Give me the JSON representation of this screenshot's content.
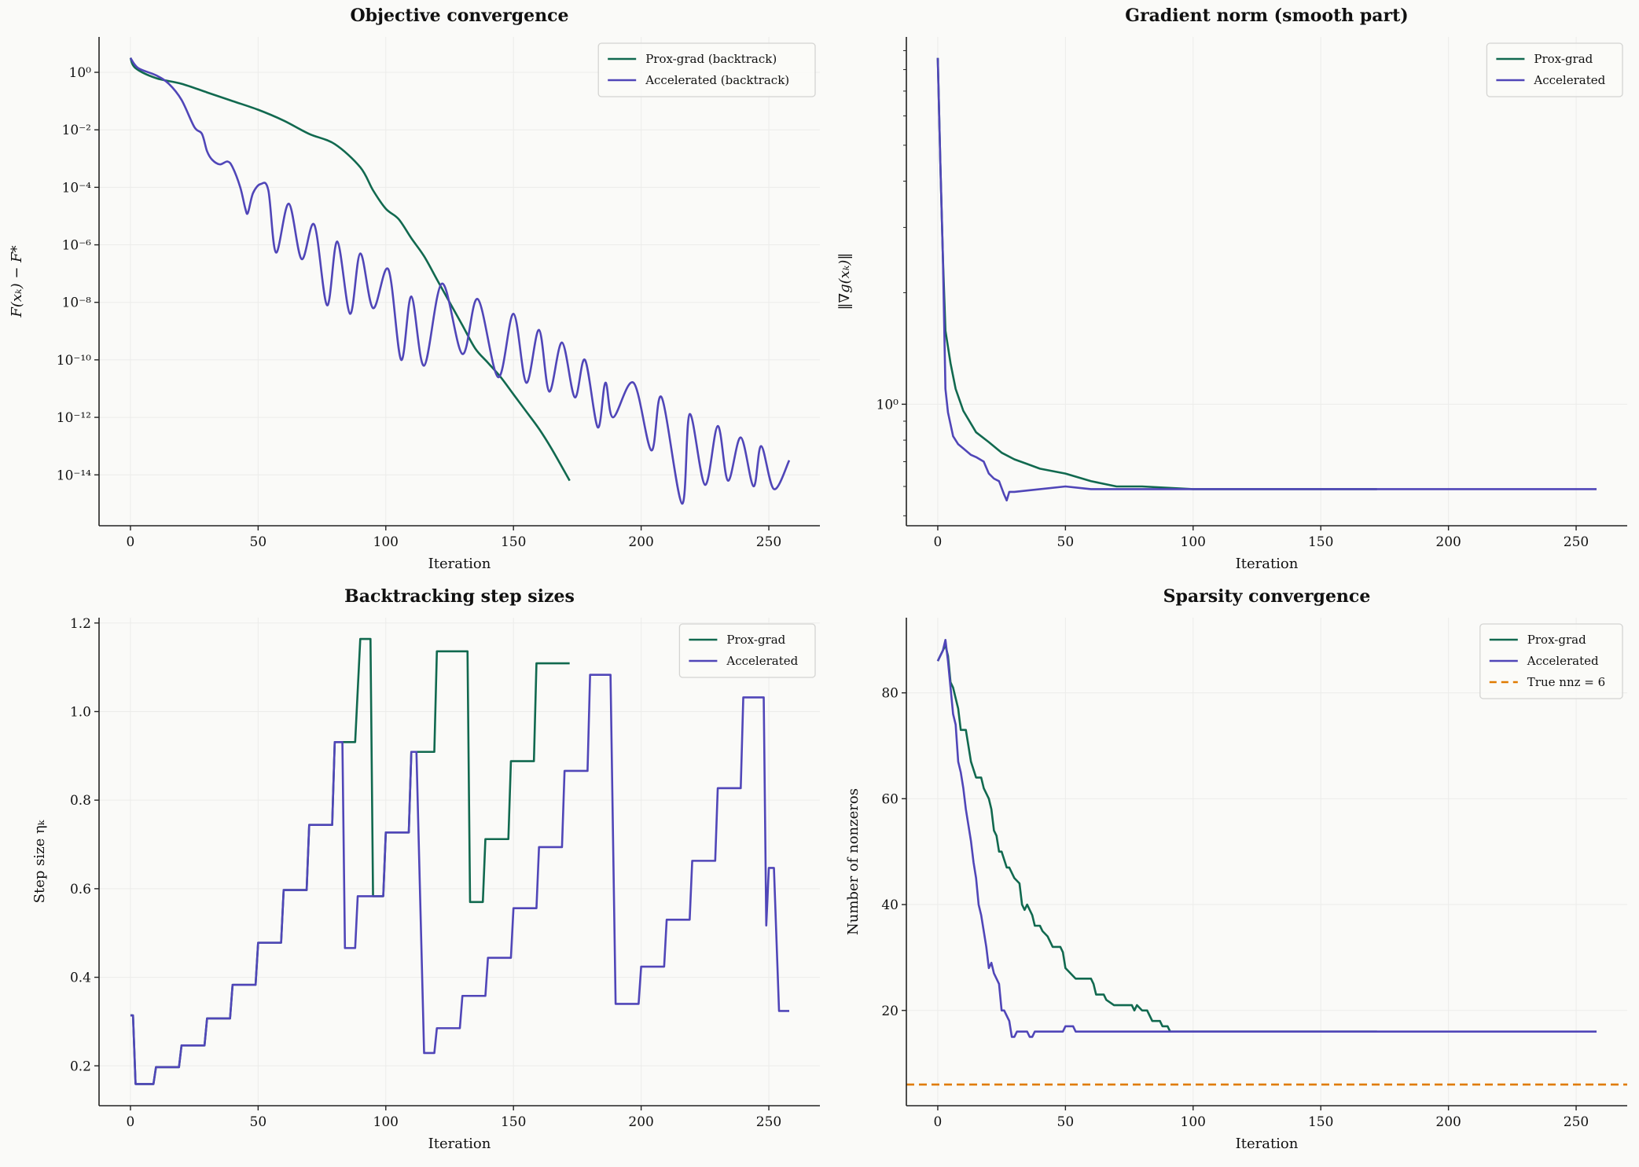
{
  "chart_data": [
    {
      "type": "line",
      "title": "Objective convergence",
      "xlabel": "Iteration",
      "ylabel": "F(xₖ) − F*",
      "yscale": "log",
      "xlim": [
        -12.3,
        270
      ],
      "ylim": [
        1.7e-16,
        17
      ],
      "grid": true,
      "legend": "top-right",
      "xticks": [
        0,
        50,
        100,
        150,
        200,
        250
      ],
      "xtick_labels": [
        "0",
        "50",
        "100",
        "150",
        "200",
        "250"
      ],
      "yticks": [
        1,
        0.01,
        0.0001,
        1e-06,
        1e-08,
        1e-10,
        1e-12,
        1e-14
      ],
      "ytick_labels": [
        "10⁰",
        "10⁻²",
        "10⁻⁴",
        "10⁻⁶",
        "10⁻⁸",
        "10⁻¹⁰",
        "10⁻¹²",
        "10⁻¹⁴"
      ],
      "series": [
        {
          "name": "Prox-grad (backtrack)",
          "color": "#11694f",
          "x": [
            0,
            2,
            10,
            20,
            30,
            40,
            50,
            60,
            70,
            80,
            90,
            95,
            100,
            105,
            110,
            115,
            120,
            125,
            130,
            135,
            140,
            145,
            150,
            155,
            160,
            165,
            172
          ],
          "y": [
            3.2,
            1.4,
            0.63,
            0.4,
            0.2,
            0.1,
            0.05,
            0.021,
            0.0072,
            0.0032,
            0.0005,
            7.9e-05,
            1.8e-05,
            7.9e-06,
            1.7e-06,
            4e-07,
            6.3e-08,
            1e-08,
            1.6e-09,
            2.5e-10,
            7.9e-11,
            2.5e-11,
            6.3e-12,
            1.6e-12,
            4e-13,
            7.9e-14,
            6.3e-15
          ]
        },
        {
          "name": "Accelerated (backtrack)",
          "color": "#5046b8",
          "x": [
            0,
            3,
            10,
            15,
            20,
            25,
            28,
            30,
            32,
            35,
            38,
            40,
            43,
            45,
            46,
            48,
            51,
            54,
            57,
            62,
            67,
            72,
            77,
            81,
            86,
            90,
            95,
            101,
            106,
            110,
            115,
            122,
            130,
            136,
            144,
            150,
            155,
            160,
            164,
            169,
            174,
            178,
            183,
            186,
            189,
            197,
            204,
            208,
            216,
            219,
            225,
            230,
            234,
            239,
            244,
            247,
            252,
            258
          ],
          "y": [
            3.16,
            1.41,
            0.79,
            0.4,
            0.11,
            0.0126,
            0.0072,
            0.0018,
            0.00091,
            0.00063,
            0.00079,
            0.0005,
            0.0001,
            1.8e-05,
            1.3e-05,
            6.3e-05,
            0.00013,
            7.9e-05,
            5.4e-07,
            2.7e-05,
            3.2e-07,
            5e-06,
            7.9e-09,
            1.3e-06,
            4e-09,
            5e-07,
            6.3e-09,
            1.4e-07,
            1e-10,
            1.6e-08,
            6.3e-11,
            4.5e-08,
            1.6e-10,
            1.3e-08,
            2.5e-11,
            4e-09,
            1.6e-11,
            1.1e-09,
            7.9e-12,
            4e-10,
            5e-12,
            1e-10,
            4.5e-13,
            1.6e-11,
            1e-12,
            1.6e-11,
            7.1e-14,
            5e-12,
            1e-15,
            1.3e-12,
            4.5e-15,
            5e-13,
            6.3e-15,
            2e-13,
            4e-15,
            1e-13,
            3.2e-15,
            3.2e-14
          ]
        }
      ]
    },
    {
      "type": "line",
      "title": "Gradient norm (smooth part)",
      "xlabel": "Iteration",
      "ylabel": "‖∇g(xₖ)‖",
      "yscale": "log",
      "xlim": [
        -12.3,
        270
      ],
      "ylim": [
        0.47,
        9.8
      ],
      "grid": true,
      "legend": "top-right",
      "xticks": [
        0,
        50,
        100,
        150,
        200,
        250
      ],
      "xtick_labels": [
        "0",
        "50",
        "100",
        "150",
        "200",
        "250"
      ],
      "yticks": [
        1
      ],
      "ytick_labels": [
        "10⁰"
      ],
      "minor_yticks": [
        0.5,
        0.6,
        0.7,
        0.8,
        0.9,
        2,
        3,
        4,
        5,
        6,
        7,
        8,
        9
      ],
      "series": [
        {
          "name": "Prox-grad",
          "color": "#11694f",
          "x": [
            0,
            1,
            2,
            3,
            5,
            7,
            10,
            15,
            20,
            25,
            30,
            35,
            40,
            50,
            60,
            70,
            80,
            100,
            172
          ],
          "y": [
            8.6,
            4.5,
            2.5,
            1.58,
            1.29,
            1.1,
            0.96,
            0.84,
            0.79,
            0.74,
            0.71,
            0.69,
            0.67,
            0.65,
            0.62,
            0.6,
            0.6,
            0.59,
            0.59
          ]
        },
        {
          "name": "Accelerated",
          "color": "#5046b8",
          "x": [
            0,
            1,
            2,
            3,
            4,
            6,
            8,
            10,
            13,
            15,
            18,
            20,
            22,
            24,
            26,
            27,
            28,
            30,
            35,
            50,
            60,
            258
          ],
          "y": [
            8.6,
            4.5,
            2.5,
            1.1,
            0.95,
            0.82,
            0.78,
            0.76,
            0.73,
            0.72,
            0.7,
            0.65,
            0.63,
            0.62,
            0.57,
            0.55,
            0.58,
            0.58,
            0.585,
            0.6,
            0.59,
            0.59
          ]
        }
      ]
    },
    {
      "type": "line",
      "title": "Backtracking step sizes",
      "xlabel": "Iteration",
      "ylabel": "Step size ηₖ",
      "yscale": "linear",
      "xlim": [
        -12.3,
        270
      ],
      "ylim": [
        0.11,
        1.212
      ],
      "grid": true,
      "legend": "top-right",
      "xticks": [
        0,
        50,
        100,
        150,
        200,
        250
      ],
      "xtick_labels": [
        "0",
        "50",
        "100",
        "150",
        "200",
        "250"
      ],
      "yticks": [
        0.2,
        0.4,
        0.6,
        0.8,
        1.0,
        1.2
      ],
      "ytick_labels": [
        "0.2",
        "0.4",
        "0.6",
        "0.8",
        "1.0",
        "1.2"
      ],
      "series": [
        {
          "name": "Prox-grad",
          "color": "#11694f",
          "x": [
            0,
            1,
            2,
            9,
            10,
            19,
            20,
            29,
            30,
            39,
            40,
            49,
            50,
            59,
            60,
            69,
            70,
            79,
            80,
            88,
            90,
            94,
            95,
            99,
            100,
            109,
            110,
            119,
            120,
            132,
            133,
            138,
            139,
            148,
            149,
            158,
            159,
            172
          ],
          "y": [
            0.314,
            0.314,
            0.159,
            0.159,
            0.197,
            0.197,
            0.246,
            0.246,
            0.307,
            0.307,
            0.383,
            0.383,
            0.478,
            0.478,
            0.597,
            0.597,
            0.744,
            0.744,
            0.931,
            0.931,
            1.164,
            1.164,
            0.583,
            0.583,
            0.727,
            0.727,
            0.909,
            0.909,
            1.136,
            1.136,
            0.57,
            0.57,
            0.712,
            0.712,
            0.888,
            0.888,
            1.109,
            1.109
          ]
        },
        {
          "name": "Accelerated",
          "color": "#5046b8",
          "x": [
            0,
            1,
            2,
            9,
            10,
            19,
            20,
            29,
            30,
            39,
            40,
            49,
            50,
            59,
            60,
            69,
            70,
            79,
            80,
            83,
            84,
            88,
            89,
            99,
            100,
            109,
            110,
            112,
            115,
            119,
            120,
            129,
            130,
            139,
            140,
            149,
            150,
            159,
            160,
            169,
            170,
            179,
            180,
            188,
            190,
            199,
            200,
            209,
            210,
            219,
            220,
            229,
            230,
            239,
            240,
            248,
            249,
            250,
            252,
            254,
            258
          ],
          "y": [
            0.314,
            0.314,
            0.159,
            0.159,
            0.197,
            0.197,
            0.246,
            0.246,
            0.307,
            0.307,
            0.383,
            0.383,
            0.478,
            0.478,
            0.597,
            0.597,
            0.744,
            0.744,
            0.931,
            0.931,
            0.466,
            0.466,
            0.583,
            0.583,
            0.727,
            0.727,
            0.909,
            0.909,
            0.229,
            0.229,
            0.285,
            0.285,
            0.358,
            0.358,
            0.444,
            0.444,
            0.556,
            0.556,
            0.694,
            0.694,
            0.866,
            0.866,
            1.083,
            1.083,
            0.34,
            0.34,
            0.424,
            0.424,
            0.53,
            0.53,
            0.663,
            0.663,
            0.827,
            0.827,
            1.032,
            1.032,
            0.517,
            0.647,
            0.647,
            0.324,
            0.324
          ]
        }
      ]
    },
    {
      "type": "line",
      "title": "Sparsity convergence",
      "xlabel": "Iteration",
      "ylabel": "Number of nonzeros",
      "yscale": "linear",
      "xlim": [
        -12.3,
        270
      ],
      "ylim": [
        2,
        94.2
      ],
      "grid": true,
      "legend": "top-right",
      "xticks": [
        0,
        50,
        100,
        150,
        200,
        250
      ],
      "xtick_labels": [
        "0",
        "50",
        "100",
        "150",
        "200",
        "250"
      ],
      "yticks": [
        20,
        40,
        60,
        80
      ],
      "ytick_labels": [
        "20",
        "40",
        "60",
        "80"
      ],
      "series": [
        {
          "name": "Prox-grad",
          "color": "#11694f",
          "x": [
            0,
            1,
            3,
            4,
            5,
            6,
            8,
            9,
            11,
            12,
            13,
            15,
            17,
            18,
            20,
            21,
            22,
            23,
            24,
            25,
            27,
            28,
            30,
            32,
            33,
            34,
            35,
            37,
            38,
            40,
            41,
            43,
            45,
            48,
            49,
            50,
            52,
            54,
            60,
            61,
            62,
            65,
            66,
            69,
            76,
            77,
            78,
            80,
            82,
            83,
            84,
            87,
            88,
            90,
            91,
            172
          ],
          "y": [
            86,
            87,
            89,
            87,
            82,
            81,
            77,
            73,
            73,
            70,
            67,
            64,
            64,
            62,
            60,
            58,
            54,
            53,
            50,
            50,
            47,
            47,
            45,
            44,
            40,
            39,
            40,
            38,
            36,
            36,
            35,
            34,
            32,
            32,
            31,
            28,
            27,
            26,
            26,
            25,
            23,
            23,
            22,
            21,
            21,
            20,
            21,
            20,
            20,
            19,
            18,
            18,
            17,
            17,
            16,
            16
          ]
        },
        {
          "name": "Accelerated",
          "color": "#5046b8",
          "x": [
            0,
            1,
            2,
            3,
            4,
            5,
            6,
            7,
            8,
            9,
            10,
            11,
            12,
            13,
            14,
            15,
            16,
            17,
            18,
            19,
            20,
            21,
            22,
            23,
            24,
            25,
            26,
            27,
            28,
            29,
            30,
            31,
            35,
            36,
            37,
            38,
            49,
            50,
            53,
            54,
            258
          ],
          "y": [
            86,
            87,
            88,
            90,
            86,
            81,
            76,
            74,
            67,
            65,
            62,
            58,
            55,
            52,
            48,
            45,
            40,
            38,
            35,
            32,
            28,
            29,
            27,
            26,
            25,
            20,
            20,
            19,
            18,
            15,
            15,
            16,
            16,
            15,
            15,
            16,
            16,
            17,
            17,
            16,
            16
          ]
        }
      ],
      "hlines": [
        {
          "name": "True nnz = 6",
          "value": 6,
          "color": "#e07b00",
          "style": "dashed"
        }
      ]
    }
  ]
}
